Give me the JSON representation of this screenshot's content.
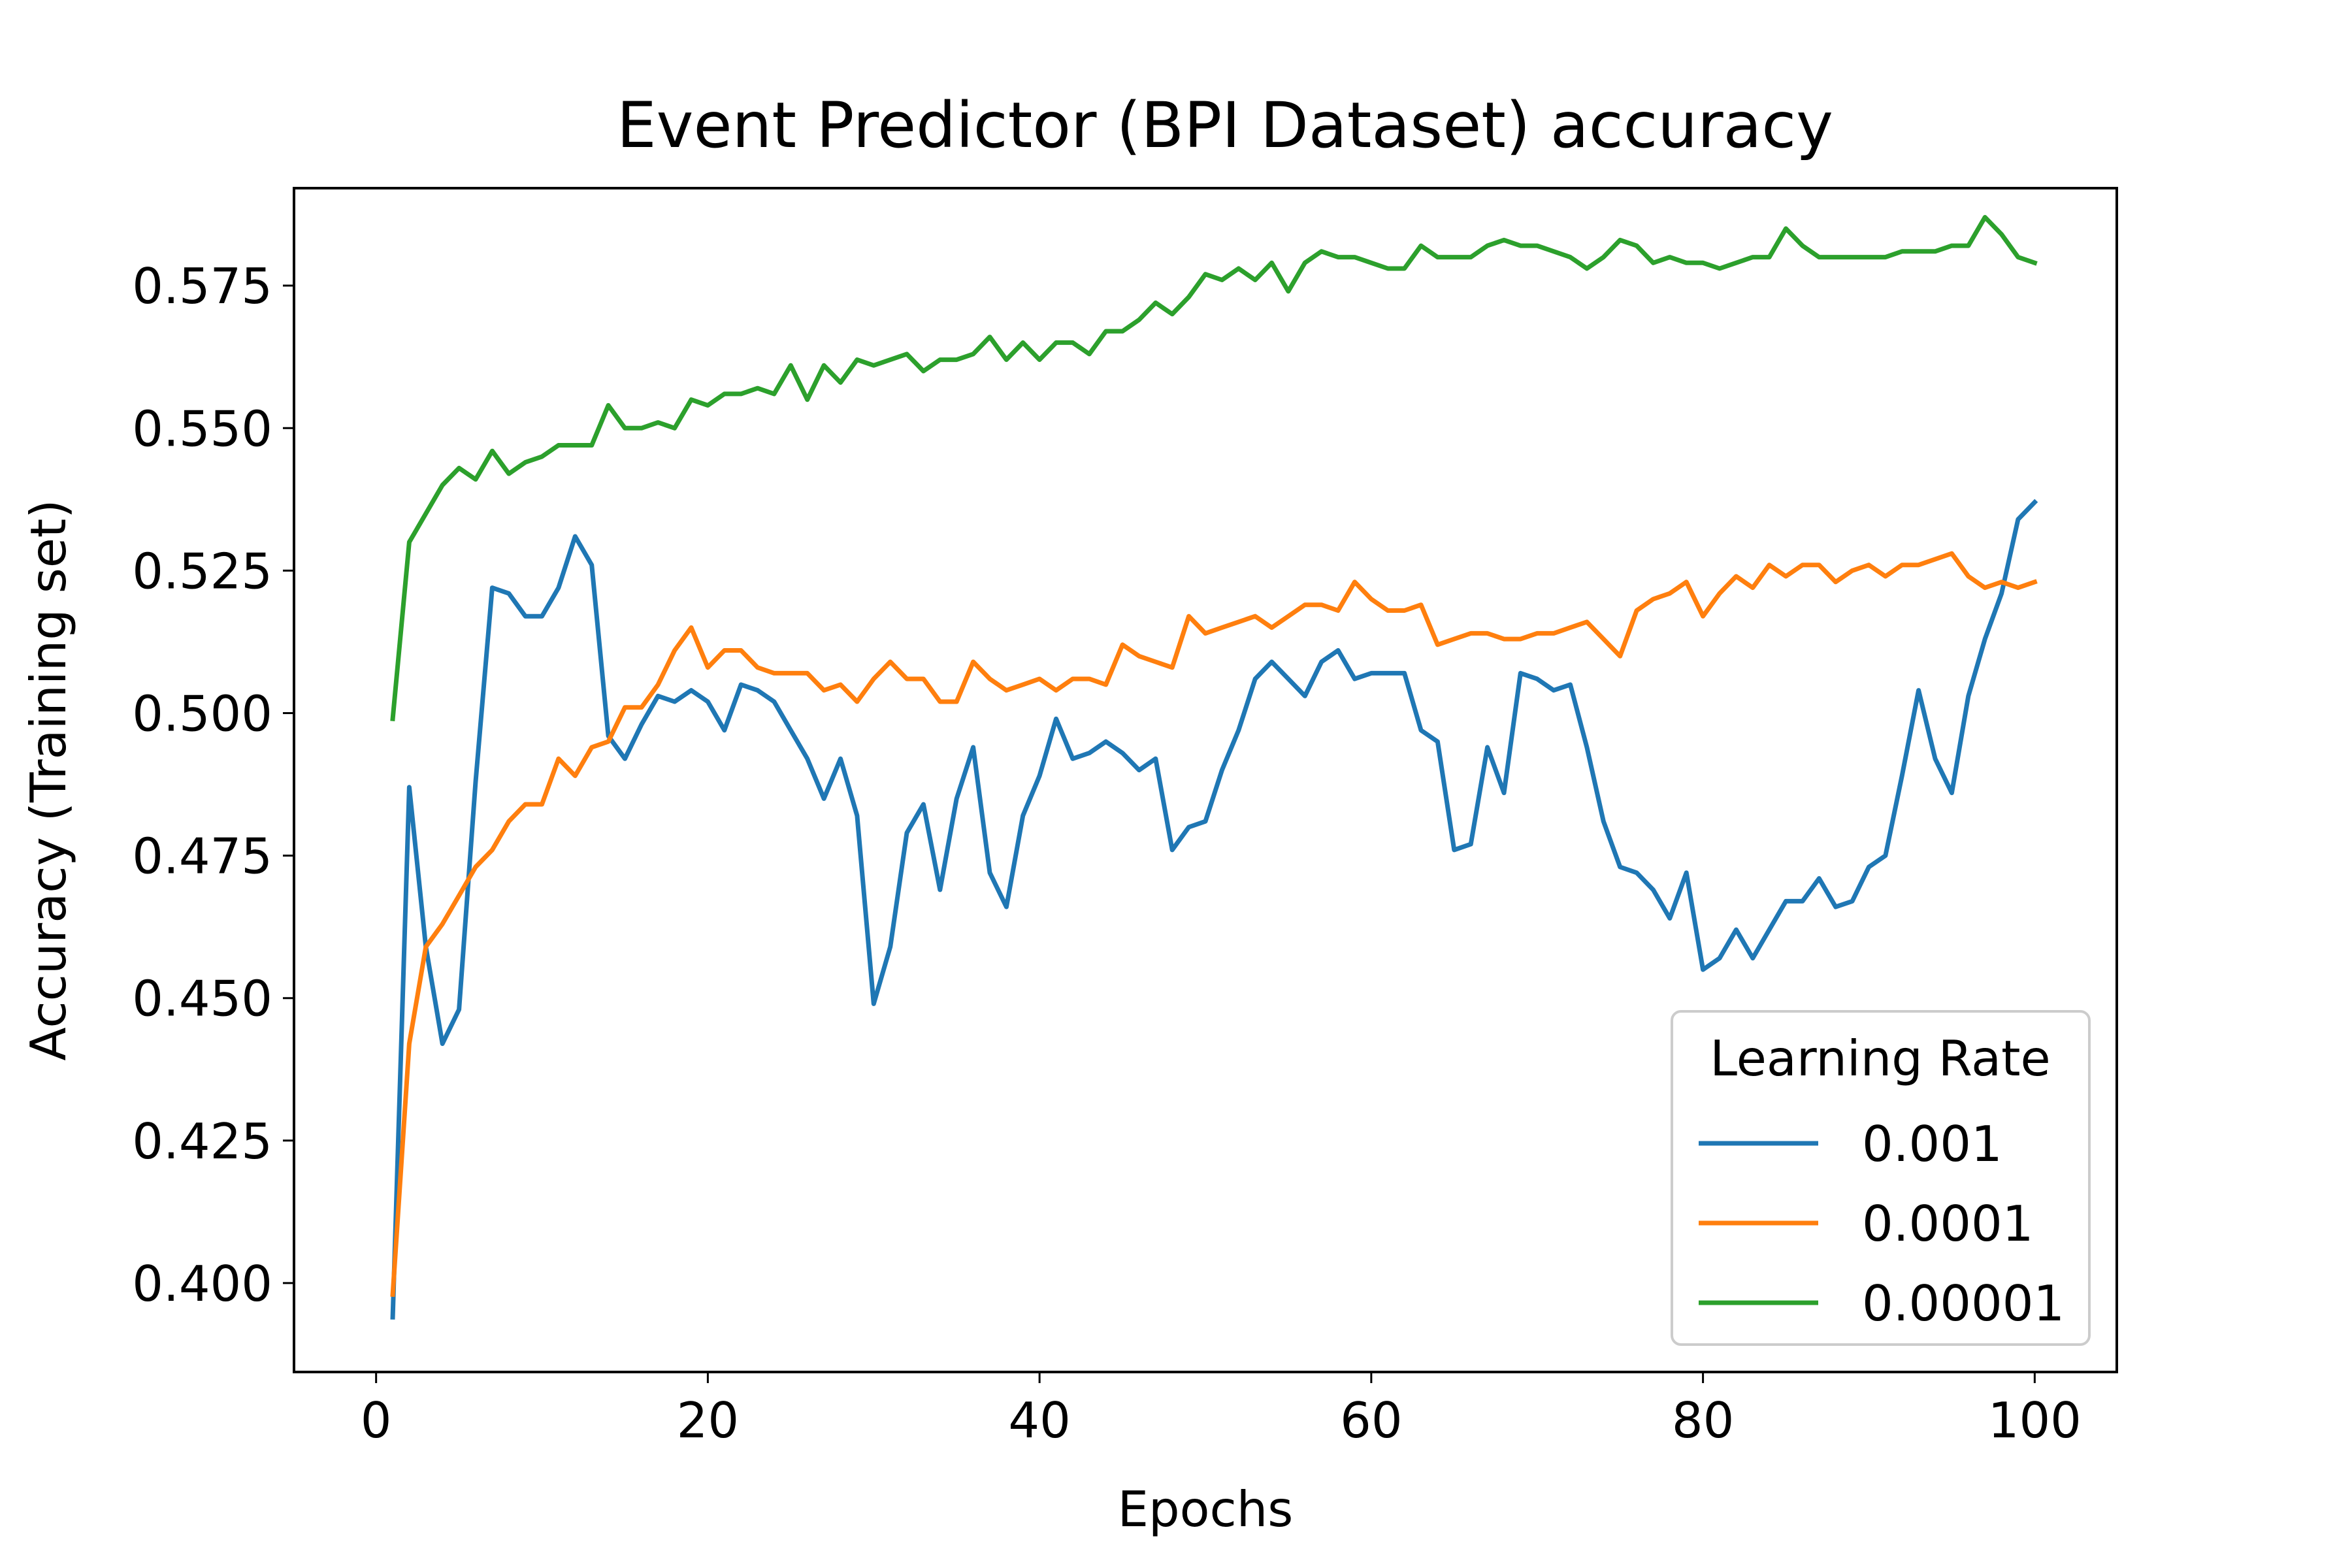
{
  "chart_data": {
    "type": "line",
    "title": "Event Predictor (BPI Dataset) accuracy",
    "xlabel": "Epochs",
    "ylabel": "Accuracy (Training set)",
    "xlim": [
      -4.95,
      104.95
    ],
    "ylim": [
      0.3844,
      0.5921
    ],
    "xticks": [
      0,
      20,
      40,
      60,
      80,
      100
    ],
    "xtick_labels": [
      "0",
      "20",
      "40",
      "60",
      "80",
      "100"
    ],
    "yticks": [
      0.4,
      0.425,
      0.45,
      0.475,
      0.5,
      0.525,
      0.55,
      0.575
    ],
    "ytick_labels": [
      "0.400",
      "0.425",
      "0.450",
      "0.475",
      "0.500",
      "0.525",
      "0.550",
      "0.575"
    ],
    "grid": false,
    "legend": {
      "title": "Learning Rate",
      "position": "lower-right"
    },
    "x_start": 1,
    "series": [
      {
        "name": "0.001",
        "color": "#1f77b4",
        "values": [
          0.394,
          0.487,
          0.459,
          0.442,
          0.448,
          0.488,
          0.522,
          0.521,
          0.517,
          0.517,
          0.522,
          0.531,
          0.526,
          0.496,
          0.492,
          0.498,
          0.503,
          0.502,
          0.504,
          0.502,
          0.497,
          0.505,
          0.504,
          0.502,
          0.497,
          0.492,
          0.485,
          0.492,
          0.482,
          0.449,
          0.459,
          0.479,
          0.484,
          0.469,
          0.485,
          0.494,
          0.472,
          0.466,
          0.482,
          0.489,
          0.499,
          0.492,
          0.493,
          0.495,
          0.493,
          0.49,
          0.492,
          0.476,
          0.48,
          0.481,
          0.49,
          0.497,
          0.506,
          0.509,
          0.506,
          0.503,
          0.509,
          0.511,
          0.506,
          0.507,
          0.507,
          0.507,
          0.497,
          0.495,
          0.476,
          0.477,
          0.494,
          0.486,
          0.507,
          0.506,
          0.504,
          0.505,
          0.494,
          0.481,
          0.473,
          0.472,
          0.469,
          0.464,
          0.472,
          0.455,
          0.457,
          0.462,
          0.457,
          0.462,
          0.467,
          0.467,
          0.471,
          0.466,
          0.467,
          0.473,
          0.475,
          0.489,
          0.504,
          0.492,
          0.486,
          0.503,
          0.513,
          0.521,
          0.534,
          0.537
        ]
      },
      {
        "name": "0.0001",
        "color": "#ff7f0e",
        "values": [
          0.398,
          0.442,
          0.459,
          0.463,
          0.468,
          0.473,
          0.476,
          0.481,
          0.484,
          0.484,
          0.492,
          0.489,
          0.494,
          0.495,
          0.501,
          0.501,
          0.505,
          0.511,
          0.515,
          0.508,
          0.511,
          0.511,
          0.508,
          0.507,
          0.507,
          0.507,
          0.504,
          0.505,
          0.502,
          0.506,
          0.509,
          0.506,
          0.506,
          0.502,
          0.502,
          0.509,
          0.506,
          0.504,
          0.505,
          0.506,
          0.504,
          0.506,
          0.506,
          0.505,
          0.512,
          0.51,
          0.509,
          0.508,
          0.517,
          0.514,
          0.515,
          0.516,
          0.517,
          0.515,
          0.517,
          0.519,
          0.519,
          0.518,
          0.523,
          0.52,
          0.518,
          0.518,
          0.519,
          0.512,
          0.513,
          0.514,
          0.514,
          0.513,
          0.513,
          0.514,
          0.514,
          0.515,
          0.516,
          0.513,
          0.51,
          0.518,
          0.52,
          0.521,
          0.523,
          0.517,
          0.521,
          0.524,
          0.522,
          0.526,
          0.524,
          0.526,
          0.526,
          0.523,
          0.525,
          0.526,
          0.524,
          0.526,
          0.526,
          0.527,
          0.528,
          0.524,
          0.522,
          0.523,
          0.522,
          0.523
        ]
      },
      {
        "name": "0.00001",
        "color": "#2ca02c",
        "values": [
          0.499,
          0.53,
          0.535,
          0.54,
          0.543,
          0.541,
          0.546,
          0.542,
          0.544,
          0.545,
          0.547,
          0.547,
          0.547,
          0.554,
          0.55,
          0.55,
          0.551,
          0.55,
          0.555,
          0.554,
          0.556,
          0.556,
          0.557,
          0.556,
          0.561,
          0.555,
          0.561,
          0.558,
          0.562,
          0.561,
          0.562,
          0.563,
          0.56,
          0.562,
          0.562,
          0.563,
          0.566,
          0.562,
          0.565,
          0.562,
          0.565,
          0.565,
          0.563,
          0.567,
          0.567,
          0.569,
          0.572,
          0.57,
          0.573,
          0.577,
          0.576,
          0.578,
          0.576,
          0.579,
          0.574,
          0.579,
          0.581,
          0.58,
          0.58,
          0.579,
          0.578,
          0.578,
          0.582,
          0.58,
          0.58,
          0.58,
          0.582,
          0.583,
          0.582,
          0.582,
          0.581,
          0.58,
          0.578,
          0.58,
          0.583,
          0.582,
          0.579,
          0.58,
          0.579,
          0.579,
          0.578,
          0.579,
          0.58,
          0.58,
          0.585,
          0.582,
          0.58,
          0.58,
          0.58,
          0.58,
          0.58,
          0.581,
          0.581,
          0.581,
          0.582,
          0.582,
          0.587,
          0.584,
          0.58,
          0.579
        ]
      }
    ]
  }
}
